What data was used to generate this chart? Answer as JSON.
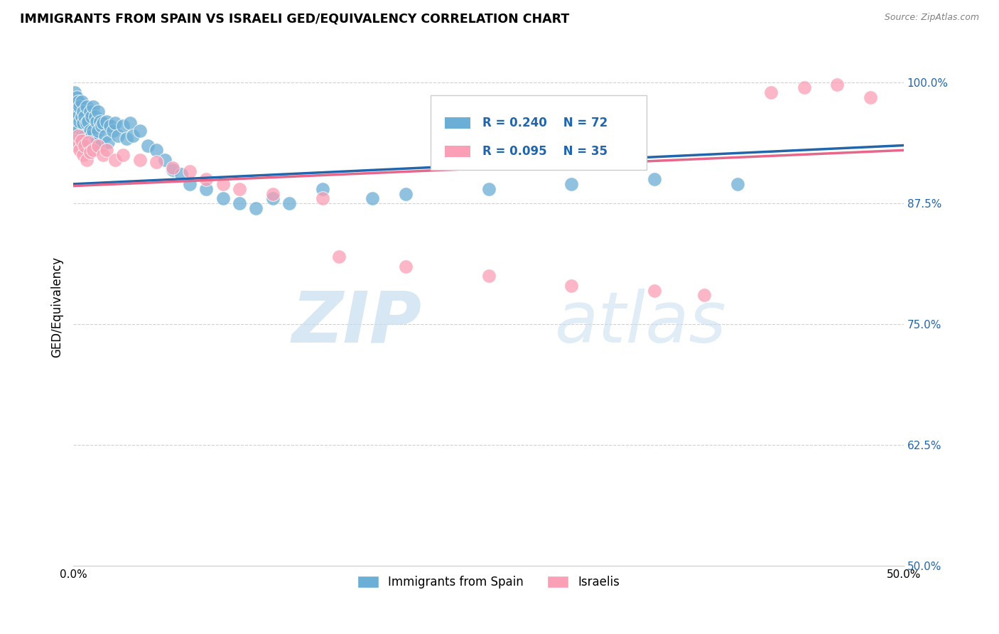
{
  "title": "IMMIGRANTS FROM SPAIN VS ISRAELI GED/EQUIVALENCY CORRELATION CHART",
  "source": "Source: ZipAtlas.com",
  "ylabel": "GED/Equivalency",
  "yticks": [
    "100.0%",
    "87.5%",
    "75.0%",
    "62.5%",
    "50.0%"
  ],
  "ytick_vals": [
    1.0,
    0.875,
    0.75,
    0.625,
    0.5
  ],
  "xmin": 0.0,
  "xmax": 0.5,
  "ymin": 0.5,
  "ymax": 1.035,
  "legend_entries": [
    "Immigrants from Spain",
    "Israelis"
  ],
  "R_spain": 0.24,
  "N_spain": 72,
  "R_israel": 0.095,
  "N_israel": 35,
  "color_spain": "#6baed6",
  "color_israel": "#fa9fb5",
  "trendline_spain_color": "#2166ac",
  "trendline_israel_color": "#e8668a",
  "spain_x": [
    0.001,
    0.001,
    0.001,
    0.002,
    0.002,
    0.002,
    0.003,
    0.003,
    0.003,
    0.004,
    0.004,
    0.004,
    0.005,
    0.005,
    0.005,
    0.006,
    0.006,
    0.006,
    0.007,
    0.007,
    0.008,
    0.008,
    0.008,
    0.009,
    0.009,
    0.01,
    0.01,
    0.011,
    0.011,
    0.012,
    0.012,
    0.013,
    0.013,
    0.014,
    0.014,
    0.015,
    0.015,
    0.016,
    0.016,
    0.017,
    0.018,
    0.019,
    0.02,
    0.021,
    0.022,
    0.024,
    0.025,
    0.027,
    0.03,
    0.032,
    0.034,
    0.036,
    0.04,
    0.045,
    0.05,
    0.055,
    0.06,
    0.065,
    0.07,
    0.08,
    0.09,
    0.1,
    0.11,
    0.12,
    0.13,
    0.15,
    0.18,
    0.2,
    0.25,
    0.3,
    0.35,
    0.4
  ],
  "spain_y": [
    0.99,
    0.975,
    0.96,
    0.985,
    0.97,
    0.955,
    0.98,
    0.965,
    0.95,
    0.975,
    0.96,
    0.94,
    0.98,
    0.965,
    0.945,
    0.97,
    0.958,
    0.94,
    0.965,
    0.945,
    0.975,
    0.958,
    0.938,
    0.96,
    0.94,
    0.97,
    0.95,
    0.965,
    0.945,
    0.975,
    0.95,
    0.965,
    0.94,
    0.96,
    0.938,
    0.97,
    0.95,
    0.96,
    0.935,
    0.955,
    0.958,
    0.945,
    0.96,
    0.938,
    0.955,
    0.95,
    0.958,
    0.945,
    0.955,
    0.942,
    0.958,
    0.945,
    0.95,
    0.935,
    0.93,
    0.92,
    0.91,
    0.905,
    0.895,
    0.89,
    0.88,
    0.875,
    0.87,
    0.88,
    0.875,
    0.89,
    0.88,
    0.885,
    0.89,
    0.895,
    0.9,
    0.895
  ],
  "israel_x": [
    0.001,
    0.002,
    0.003,
    0.004,
    0.005,
    0.006,
    0.007,
    0.008,
    0.009,
    0.01,
    0.012,
    0.015,
    0.018,
    0.02,
    0.025,
    0.03,
    0.04,
    0.05,
    0.06,
    0.07,
    0.08,
    0.09,
    0.1,
    0.12,
    0.15,
    0.16,
    0.2,
    0.25,
    0.3,
    0.35,
    0.38,
    0.42,
    0.44,
    0.46,
    0.48
  ],
  "israel_y": [
    0.94,
    0.935,
    0.945,
    0.93,
    0.94,
    0.925,
    0.935,
    0.92,
    0.938,
    0.928,
    0.93,
    0.935,
    0.925,
    0.93,
    0.92,
    0.925,
    0.92,
    0.918,
    0.912,
    0.908,
    0.9,
    0.895,
    0.89,
    0.885,
    0.88,
    0.82,
    0.81,
    0.8,
    0.79,
    0.785,
    0.78,
    0.99,
    0.995,
    0.998,
    0.985
  ],
  "watermark_zip": "ZIP",
  "watermark_atlas": "atlas",
  "background_color": "#ffffff",
  "grid_color": "#d0d0d0"
}
